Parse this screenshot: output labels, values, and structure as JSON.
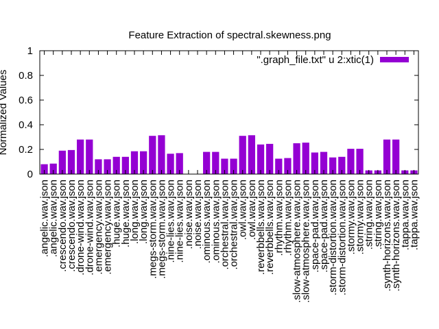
{
  "chart_data": {
    "type": "bar",
    "title": "Feature Extraction of spectral.skewness.png",
    "ylabel": "Normalized Values",
    "xlabel": "",
    "ylim": [
      0,
      1
    ],
    "yticks": [
      "0",
      "0.2",
      "0.4",
      "0.6",
      "0.8",
      "1"
    ],
    "legend": {
      "label": "\".graph_file.txt\" u 2:xtic(1)",
      "placement": "top-right"
    },
    "bar_color": "#9400d3",
    "grid": false,
    "categories": [
      ".angelic.wav.json",
      ".angelic.wav.json",
      ".crescendo.wav.json",
      ".crescendo.wav.json",
      ".drone-wind.wav.json",
      ".drone-wind.wav.json",
      ".emergency.wav.json",
      ".emergency.wav.json",
      ".huge.wav.json",
      ".huge.wav.json",
      ".long.wav.json",
      ".long.wav.json",
      ".megs-storm.wav.json",
      ".megs-storm.wav.json",
      ".nine-lies.wav.json",
      ".nine-lies.wav.json",
      ".noise.wav.json",
      ".noise.wav.json",
      ".ominous.wav.json",
      ".ominous.wav.json",
      ".orchestral.wav.json",
      ".orchestral.wav.json",
      ".owl.wav.json",
      ".owl.wav.json",
      ".reverbbells.wav.json",
      ".reverbbells.wav.json",
      ".rhythm.wav.json",
      ".rhythm.wav.json",
      ".slow-atmosphere.wav.json",
      ".slow-atmosphere.wav.json",
      ".space-pad.wav.json",
      ".space-pad.wav.json",
      ".storm-distortion.wav.json",
      ".storm-distortion.wav.json",
      ".stormy.wav.json",
      ".stormy.wav.json",
      ".string.wav.json",
      ".string.wav.json",
      ".synth-horizons.wav.json",
      ".synth-horizons.wav.json",
      ".tappa.wav.json",
      ".tappa.wav.json"
    ],
    "values": [
      0.08,
      0.085,
      0.19,
      0.195,
      0.28,
      0.28,
      0.12,
      0.12,
      0.14,
      0.14,
      0.185,
      0.185,
      0.31,
      0.315,
      0.165,
      0.17,
      0.0,
      0.0,
      0.18,
      0.18,
      0.125,
      0.125,
      0.31,
      0.315,
      0.24,
      0.245,
      0.125,
      0.13,
      0.25,
      0.255,
      0.175,
      0.18,
      0.135,
      0.14,
      0.205,
      0.205,
      0.03,
      0.03,
      0.28,
      0.28,
      0.03,
      0.03
    ]
  }
}
